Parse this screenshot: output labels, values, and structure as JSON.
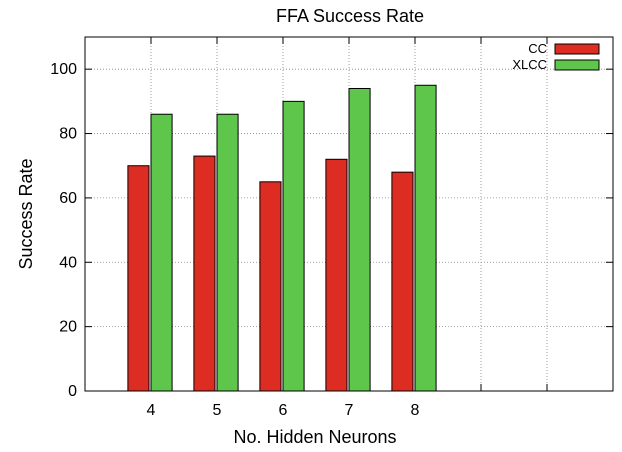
{
  "chart_data": {
    "type": "bar",
    "title": "FFA Success Rate",
    "xlabel": "No. Hidden Neurons",
    "ylabel": "Success Rate",
    "categories": [
      "4",
      "5",
      "6",
      "7",
      "8"
    ],
    "xlim": [
      3,
      11
    ],
    "ylim": [
      0,
      110
    ],
    "yticks": [
      0,
      20,
      40,
      60,
      80,
      100
    ],
    "grid": true,
    "legend_position": "top-right",
    "series": [
      {
        "name": "CC",
        "color": "#dd2d22",
        "values": [
          70,
          73,
          65,
          72,
          68
        ]
      },
      {
        "name": "XLCC",
        "color": "#5ec64a",
        "values": [
          86,
          86,
          90,
          94,
          95
        ]
      }
    ]
  }
}
